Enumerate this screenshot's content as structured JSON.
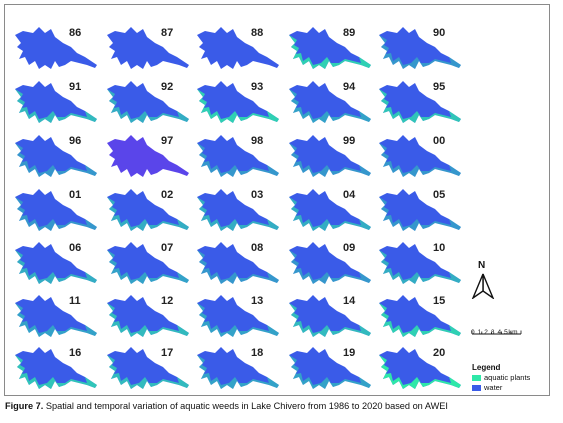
{
  "figure": {
    "label": "Figure 7.",
    "caption": "Spatial and temporal variation of aquatic weeds in Lake Chivero from 1986 to 2020 based on AWEI"
  },
  "years": [
    "86",
    "87",
    "88",
    "89",
    "90",
    "91",
    "92",
    "93",
    "94",
    "95",
    "96",
    "97",
    "98",
    "99",
    "00",
    "01",
    "02",
    "03",
    "04",
    "05",
    "06",
    "07",
    "08",
    "09",
    "10",
    "11",
    "12",
    "13",
    "14",
    "15",
    "16",
    "17",
    "18",
    "19",
    "20"
  ],
  "aquatic_plant_level": {
    "86": 0.0,
    "87": 0.0,
    "88": 0.0,
    "89": 0.3,
    "90": 0.05,
    "91": 0.2,
    "92": 0.15,
    "93": 0.3,
    "94": 0.1,
    "95": 0.25,
    "96": 0.05,
    "97": 0.0,
    "98": 0.05,
    "99": 0.05,
    "00": 0.05,
    "01": 0.05,
    "02": 0.15,
    "03": 0.15,
    "04": 0.15,
    "05": 0.05,
    "06": 0.15,
    "07": 0.1,
    "08": 0.05,
    "09": 0.05,
    "10": 0.15,
    "11": 0.1,
    "12": 0.2,
    "13": 0.1,
    "14": 0.2,
    "15": 0.3,
    "16": 0.25,
    "17": 0.2,
    "18": 0.1,
    "19": 0.1,
    "20": 0.45
  },
  "north_arrow": {
    "label": "N"
  },
  "scale_bar": {
    "ticks": "0 1 2 3 4 5",
    "unit": "km"
  },
  "legend": {
    "title": "Legend",
    "items": [
      {
        "label": "aquatic plants",
        "color": "#2ee8a8"
      },
      {
        "label": "water",
        "color": "#3a5be8"
      }
    ]
  },
  "colors": {
    "water": "#3a5be8",
    "water_1997": "#5a45ea",
    "aquatic_plants": "#2ee8a8"
  }
}
